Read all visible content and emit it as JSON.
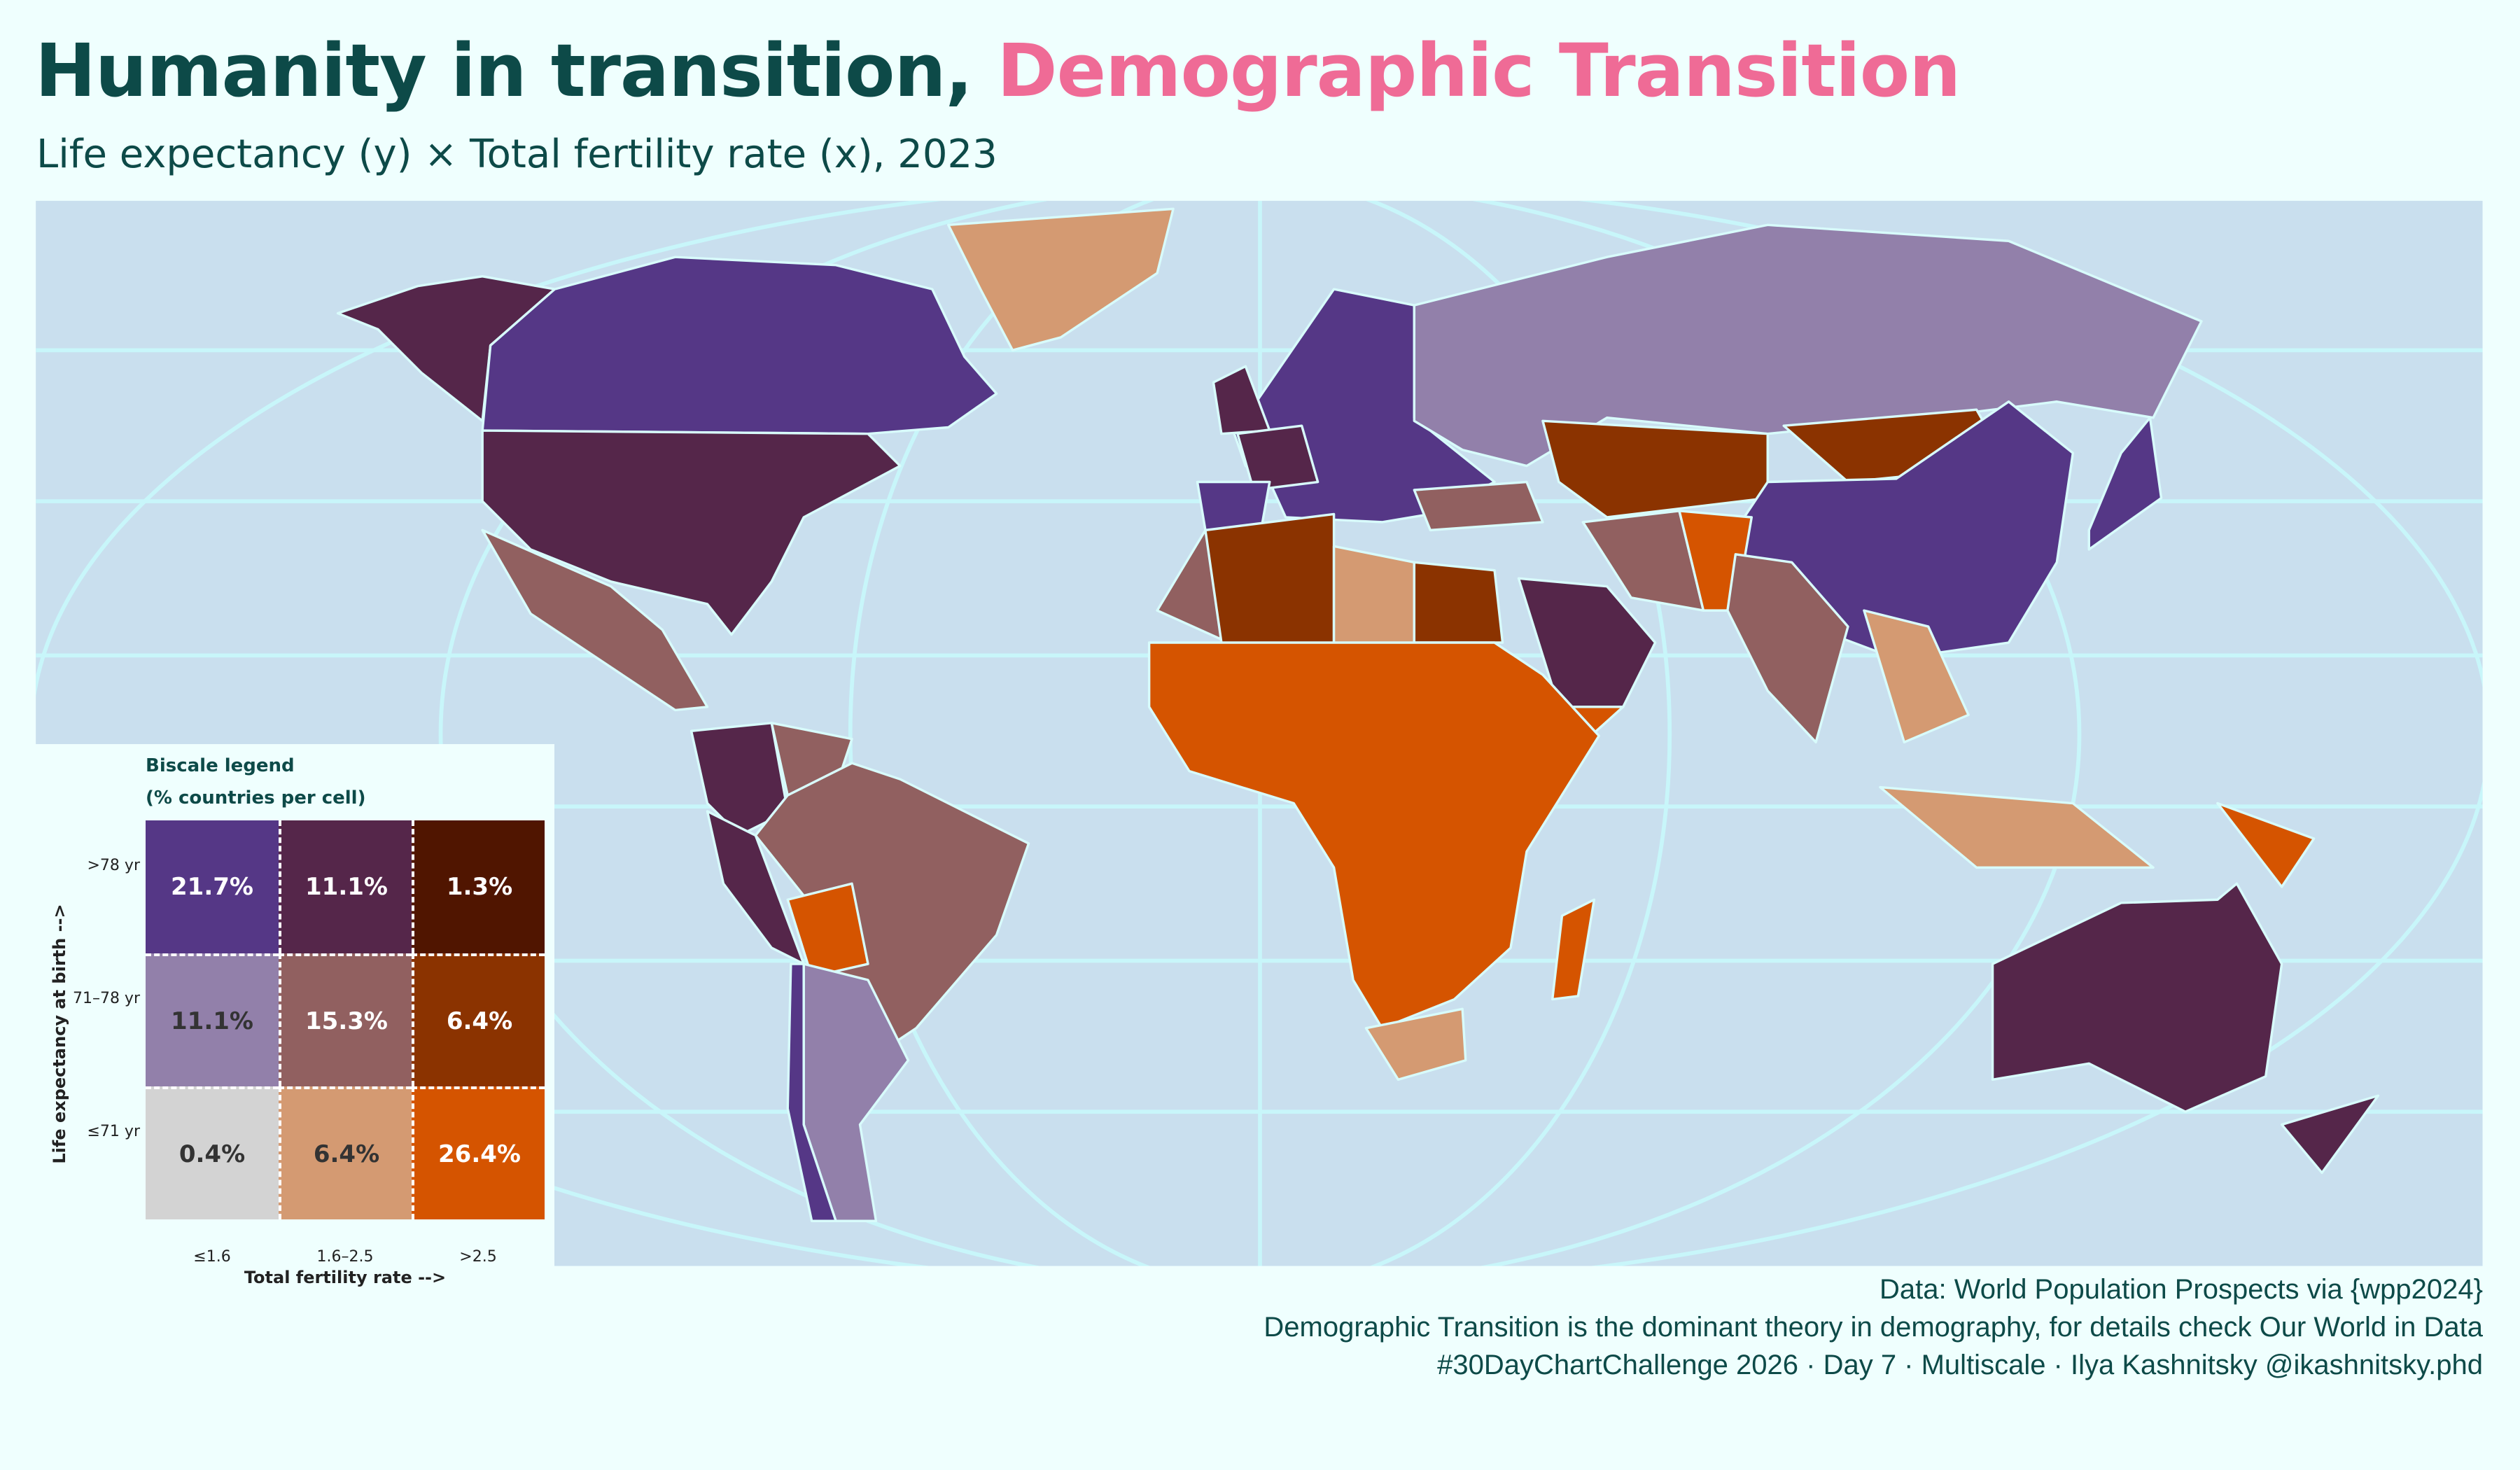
{
  "header": {
    "title_main": "Humanity in transition, ",
    "title_highlight": "Demographic Transition",
    "subtitle": "Life expectancy (y) × Total fertility rate (x), 2023",
    "highlight_color": "#ef6b96"
  },
  "map": {
    "ocean_color": "#c9dfee",
    "graticule_color": "#c8f6fa",
    "border_color": "#d8fbfb"
  },
  "legend": {
    "title_line1": "Biscale legend",
    "title_line2": "(% countries per cell)",
    "y_axis_title": "Life expectancy at birth -->",
    "x_axis_title": "Total fertility rate -->",
    "row_labels": [
      ">78 yr",
      "71–78 yr",
      "≤71 yr"
    ],
    "col_labels": [
      "≤1.6",
      "1.6–2.5",
      ">2.5"
    ],
    "cells": [
      [
        {
          "value": "21.7%",
          "color": "#553786",
          "text_color": "#ffffff"
        },
        {
          "value": "11.1%",
          "color": "#55264a",
          "text_color": "#ffffff"
        },
        {
          "value": "1.3%",
          "color": "#501500",
          "text_color": "#ffffff"
        }
      ],
      [
        {
          "value": "11.1%",
          "color": "#9280aa",
          "text_color": "#333333"
        },
        {
          "value": "15.3%",
          "color": "#916060",
          "text_color": "#ffffff"
        },
        {
          "value": "6.4%",
          "color": "#8b3300",
          "text_color": "#ffffff"
        }
      ],
      [
        {
          "value": "0.4%",
          "color": "#d3d3d3",
          "text_color": "#333333"
        },
        {
          "value": "6.4%",
          "color": "#d49a72",
          "text_color": "#333333"
        },
        {
          "value": "26.4%",
          "color": "#d55400",
          "text_color": "#ffffff"
        }
      ]
    ]
  },
  "caption": {
    "line1": "Data: World Population Prospects via {wpp2024}",
    "line2": "Demographic Transition is the dominant theory in demography, for details check Our World in Data",
    "line3": "#30DayChartChallenge 2026 · Day 7 · Multiscale · Ilya Kashnitsky @ikashnitsky.phd"
  }
}
